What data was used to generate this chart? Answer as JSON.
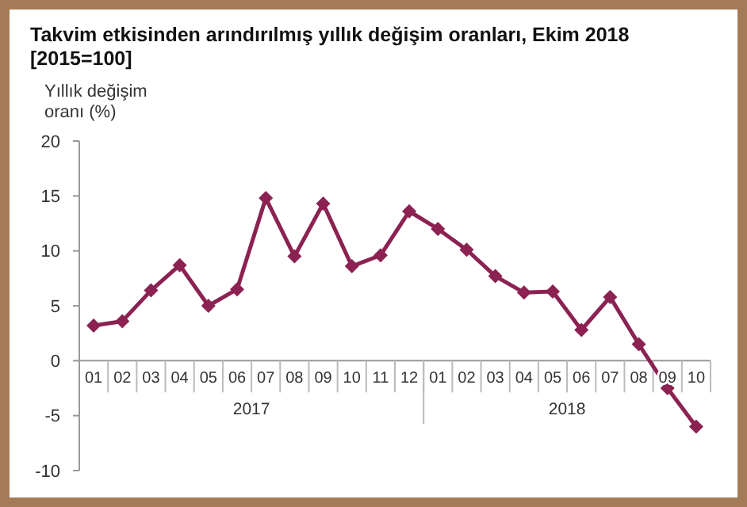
{
  "chart_data": {
    "type": "line",
    "title": "Takvim etkisinden arındırılmış yıllık değişim oranları, Ekim 2018",
    "subtitle": "[2015=100]",
    "ylabel": "Yıllık değişim oranı (%)",
    "categories": [
      "01",
      "02",
      "03",
      "04",
      "05",
      "06",
      "07",
      "08",
      "09",
      "10",
      "11",
      "12",
      "01",
      "02",
      "03",
      "04",
      "05",
      "06",
      "07",
      "08",
      "09",
      "10"
    ],
    "series": [
      {
        "color": "#8b2252",
        "values": [
          3.2,
          3.6,
          6.4,
          8.7,
          5.0,
          6.5,
          14.8,
          9.5,
          14.3,
          8.6,
          9.6,
          13.6,
          12.0,
          10.1,
          7.7,
          6.2,
          6.3,
          2.8,
          5.8,
          1.5,
          -2.5,
          -6.0
        ]
      }
    ],
    "ylim": [
      -10,
      20
    ],
    "yticks": [
      -10,
      -5,
      0,
      5,
      10,
      15,
      20
    ],
    "grid": false,
    "marker": "diamond",
    "line_style": "solid",
    "annotations": [
      "2017",
      "2018"
    ]
  }
}
